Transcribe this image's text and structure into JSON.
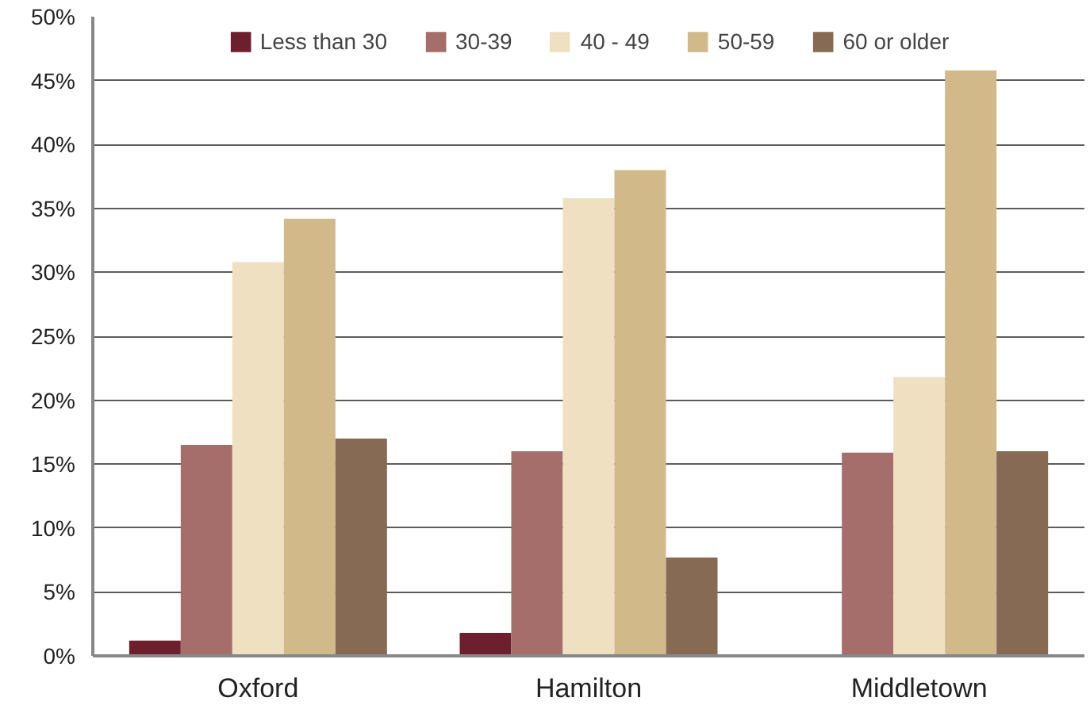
{
  "chart_data": {
    "type": "bar",
    "categories": [
      "Oxford",
      "Hamilton",
      "Middletown"
    ],
    "series": [
      {
        "name": "Less than 30",
        "color": "#6e1f2e",
        "values": [
          1.2,
          1.8,
          null
        ]
      },
      {
        "name": "30-39",
        "color": "#a56e6a",
        "values": [
          16.5,
          16,
          15.9
        ]
      },
      {
        "name": "40 - 49",
        "color": "#efe0c2",
        "values": [
          30.8,
          35.8,
          21.8
        ]
      },
      {
        "name": "50-59",
        "color": "#d2b98a",
        "values": [
          34.2,
          38,
          45.8
        ]
      },
      {
        "name": "60 or older",
        "color": "#866a53",
        "values": [
          17,
          7.7,
          16
        ]
      }
    ],
    "ylim": [
      0,
      50
    ],
    "yticks": [
      {
        "value": 0,
        "label": "0%"
      },
      {
        "value": 5,
        "label": "5%"
      },
      {
        "value": 10,
        "label": "10%"
      },
      {
        "value": 15,
        "label": "15%"
      },
      {
        "value": 20,
        "label": "20%"
      },
      {
        "value": 25,
        "label": "25%"
      },
      {
        "value": 30,
        "label": "30%"
      },
      {
        "value": 35,
        "label": "35%"
      },
      {
        "value": 40,
        "label": "40%"
      },
      {
        "value": 45,
        "label": "45%"
      },
      {
        "value": 50,
        "label": "50%"
      }
    ],
    "grid": "y",
    "legend": "top"
  }
}
